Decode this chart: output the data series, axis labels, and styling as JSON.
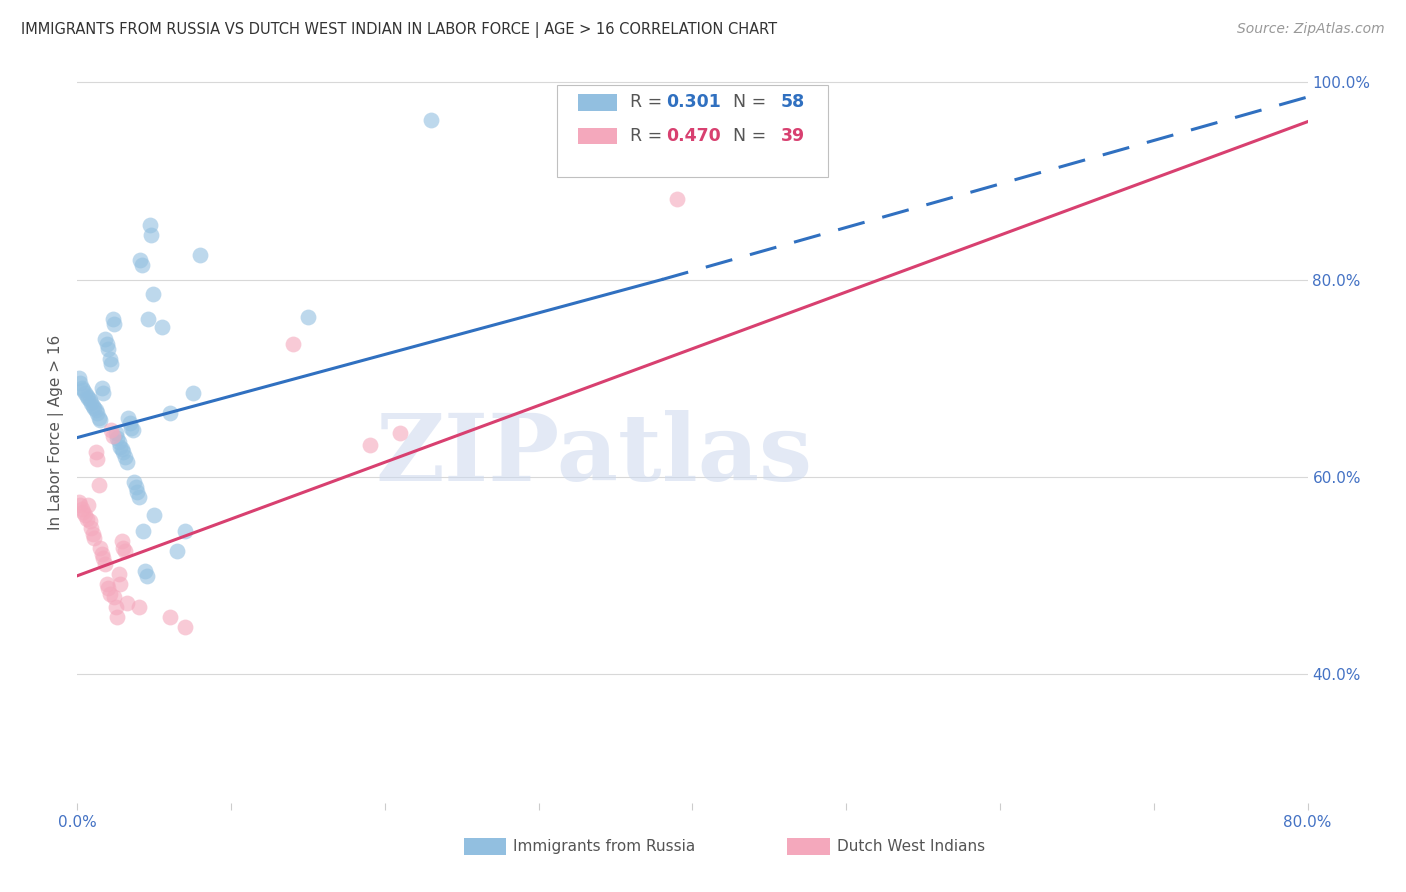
{
  "title": "IMMIGRANTS FROM RUSSIA VS DUTCH WEST INDIAN IN LABOR FORCE | AGE > 16 CORRELATION CHART",
  "source": "Source: ZipAtlas.com",
  "ylabel": "In Labor Force | Age > 16",
  "R_blue": 0.301,
  "N_blue": 58,
  "R_pink": 0.47,
  "N_pink": 39,
  "blue_color": "#92bfe0",
  "blue_line_color": "#3070c0",
  "pink_color": "#f4a8bc",
  "pink_line_color": "#d84070",
  "blue_scatter": [
    [
      0.001,
      0.7
    ],
    [
      0.002,
      0.695
    ],
    [
      0.003,
      0.69
    ],
    [
      0.004,
      0.688
    ],
    [
      0.005,
      0.685
    ],
    [
      0.006,
      0.682
    ],
    [
      0.007,
      0.68
    ],
    [
      0.008,
      0.678
    ],
    [
      0.009,
      0.675
    ],
    [
      0.01,
      0.672
    ],
    [
      0.011,
      0.67
    ],
    [
      0.012,
      0.668
    ],
    [
      0.013,
      0.665
    ],
    [
      0.014,
      0.66
    ],
    [
      0.015,
      0.658
    ],
    [
      0.016,
      0.69
    ],
    [
      0.017,
      0.685
    ],
    [
      0.018,
      0.74
    ],
    [
      0.019,
      0.735
    ],
    [
      0.02,
      0.73
    ],
    [
      0.021,
      0.72
    ],
    [
      0.022,
      0.715
    ],
    [
      0.023,
      0.76
    ],
    [
      0.024,
      0.755
    ],
    [
      0.025,
      0.645
    ],
    [
      0.026,
      0.64
    ],
    [
      0.027,
      0.635
    ],
    [
      0.028,
      0.63
    ],
    [
      0.029,
      0.628
    ],
    [
      0.03,
      0.625
    ],
    [
      0.031,
      0.62
    ],
    [
      0.032,
      0.615
    ],
    [
      0.033,
      0.66
    ],
    [
      0.034,
      0.655
    ],
    [
      0.035,
      0.65
    ],
    [
      0.036,
      0.648
    ],
    [
      0.037,
      0.595
    ],
    [
      0.038,
      0.59
    ],
    [
      0.039,
      0.585
    ],
    [
      0.04,
      0.58
    ],
    [
      0.041,
      0.82
    ],
    [
      0.042,
      0.815
    ],
    [
      0.043,
      0.545
    ],
    [
      0.044,
      0.505
    ],
    [
      0.045,
      0.5
    ],
    [
      0.046,
      0.76
    ],
    [
      0.047,
      0.855
    ],
    [
      0.048,
      0.845
    ],
    [
      0.049,
      0.785
    ],
    [
      0.05,
      0.562
    ],
    [
      0.055,
      0.752
    ],
    [
      0.06,
      0.665
    ],
    [
      0.065,
      0.525
    ],
    [
      0.07,
      0.545
    ],
    [
      0.075,
      0.685
    ],
    [
      0.08,
      0.825
    ],
    [
      0.15,
      0.762
    ],
    [
      0.23,
      0.962
    ]
  ],
  "pink_scatter": [
    [
      0.001,
      0.575
    ],
    [
      0.002,
      0.572
    ],
    [
      0.003,
      0.568
    ],
    [
      0.004,
      0.565
    ],
    [
      0.005,
      0.562
    ],
    [
      0.006,
      0.558
    ],
    [
      0.007,
      0.572
    ],
    [
      0.008,
      0.555
    ],
    [
      0.009,
      0.548
    ],
    [
      0.01,
      0.542
    ],
    [
      0.011,
      0.538
    ],
    [
      0.012,
      0.625
    ],
    [
      0.013,
      0.618
    ],
    [
      0.014,
      0.592
    ],
    [
      0.015,
      0.528
    ],
    [
      0.016,
      0.522
    ],
    [
      0.017,
      0.518
    ],
    [
      0.018,
      0.512
    ],
    [
      0.019,
      0.492
    ],
    [
      0.02,
      0.488
    ],
    [
      0.021,
      0.482
    ],
    [
      0.022,
      0.648
    ],
    [
      0.023,
      0.642
    ],
    [
      0.024,
      0.478
    ],
    [
      0.025,
      0.468
    ],
    [
      0.026,
      0.458
    ],
    [
      0.027,
      0.502
    ],
    [
      0.028,
      0.492
    ],
    [
      0.029,
      0.535
    ],
    [
      0.03,
      0.528
    ],
    [
      0.031,
      0.525
    ],
    [
      0.032,
      0.472
    ],
    [
      0.04,
      0.468
    ],
    [
      0.06,
      0.458
    ],
    [
      0.07,
      0.448
    ],
    [
      0.14,
      0.735
    ],
    [
      0.19,
      0.632
    ],
    [
      0.21,
      0.645
    ],
    [
      0.39,
      0.882
    ]
  ],
  "blue_line": {
    "x0": 0.0,
    "x_solid_end": 0.38,
    "x1": 0.8,
    "y0": 0.64,
    "y_solid_end": 0.8,
    "y1": 0.985
  },
  "pink_line": {
    "x0": 0.0,
    "x1": 0.8,
    "y0": 0.5,
    "y1": 0.96
  },
  "xlim": [
    0.0,
    0.8
  ],
  "ylim": [
    0.27,
    1.02
  ],
  "xtick_pos": [
    0.0,
    0.1,
    0.2,
    0.3,
    0.4,
    0.5,
    0.6,
    0.7,
    0.8
  ],
  "ytick_pos": [
    0.4,
    0.6,
    0.8,
    1.0
  ],
  "yticklabels_right": [
    "40.0%",
    "60.0%",
    "80.0%",
    "100.0%"
  ],
  "watermark_text": "ZIPatlas",
  "grid_color": "#d8d8d8",
  "bg_color": "#ffffff"
}
